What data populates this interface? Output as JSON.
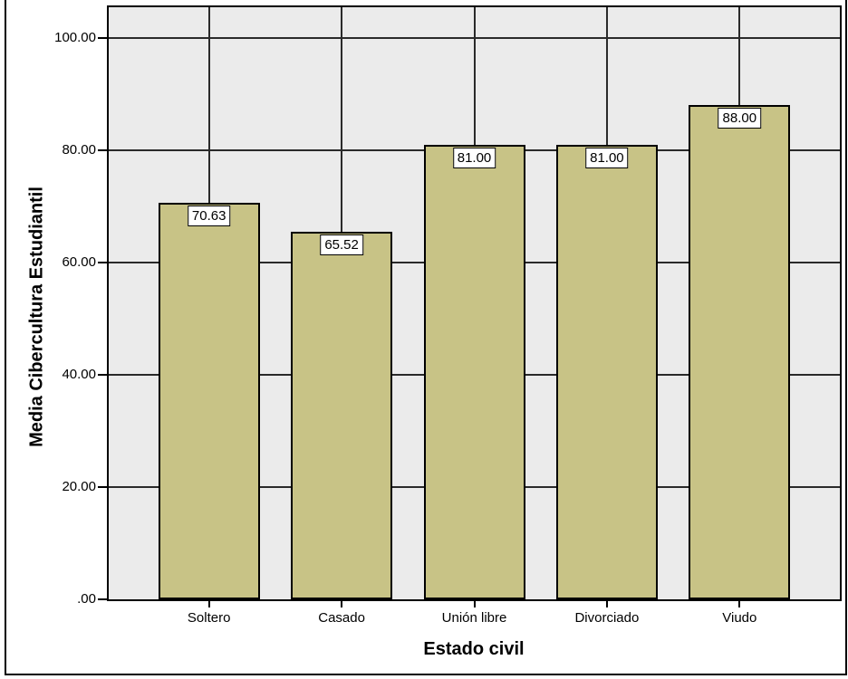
{
  "chart_data": {
    "type": "bar",
    "title": "",
    "categories": [
      "Soltero",
      "Casado",
      "Unión libre",
      "Divorciado",
      "Viudo"
    ],
    "values": [
      70.63,
      65.52,
      81.0,
      81.0,
      88.0
    ],
    "value_labels": [
      "70.63",
      "65.52",
      "81.00",
      "81.00",
      "88.00"
    ],
    "xlabel": "Estado civil",
    "ylabel": "Media Cibercultura Estudiantil",
    "ylim": [
      0,
      100
    ],
    "yticks": [
      {
        "value": 0,
        "label": ".00"
      },
      {
        "value": 20,
        "label": "20.00"
      },
      {
        "value": 40,
        "label": "40.00"
      },
      {
        "value": 60,
        "label": "60.00"
      },
      {
        "value": 80,
        "label": "80.00"
      },
      {
        "value": 100,
        "label": "100.00"
      }
    ],
    "grid": true,
    "legend": false,
    "colors": {
      "bar_fill": "#c8c386",
      "bar_border": "#000000",
      "plot_background": "#ebebeb",
      "gridline": "#2a2a2a",
      "value_label_background": "#ffffff",
      "frame": "#000000"
    }
  }
}
